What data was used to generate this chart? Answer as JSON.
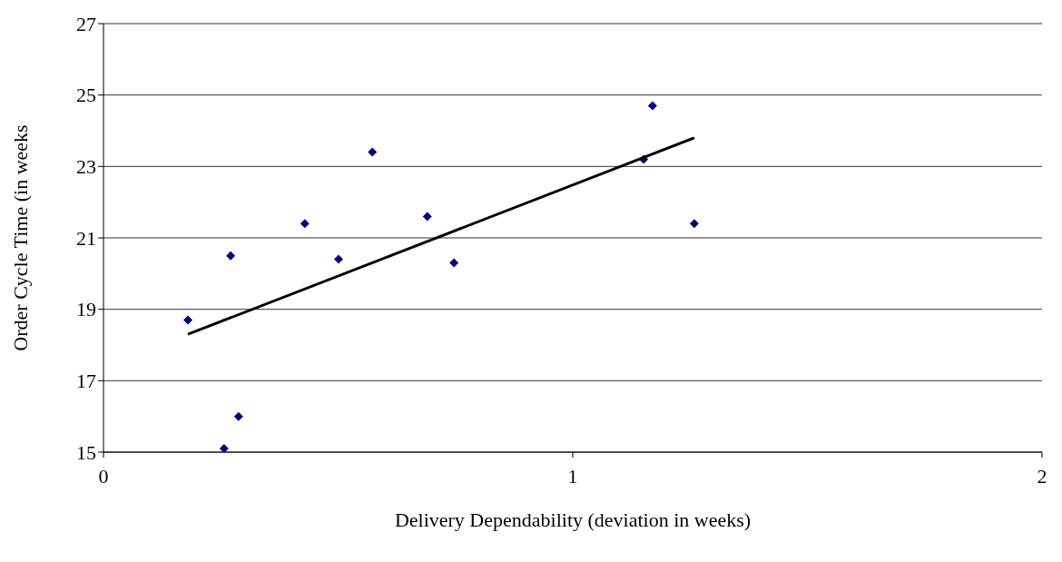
{
  "chart_data": {
    "type": "scatter",
    "xlabel": "Delivery Dependability (deviation in weeks)",
    "ylabel": "Order Cycle Time (in weeks",
    "xlim": [
      0,
      2
    ],
    "xticks": [
      0,
      1,
      2
    ],
    "ylim": [
      15,
      27
    ],
    "yticks": [
      15,
      17,
      19,
      21,
      23,
      25,
      27
    ],
    "grid": "y",
    "legend": false,
    "series": [
      {
        "type": "scatter",
        "color": "#000080",
        "marker": "diamond",
        "x": [
          0.18,
          0.257,
          0.288,
          0.271,
          0.429,
          0.501,
          0.573,
          0.69,
          0.747,
          1.151,
          1.17,
          1.259
        ],
        "values": [
          18.7,
          15.1,
          16.0,
          20.5,
          21.4,
          20.4,
          23.4,
          21.6,
          20.3,
          23.2,
          24.7,
          21.4
        ]
      },
      {
        "type": "line",
        "color": "#000000",
        "marker": "none",
        "line_style": "solid",
        "x": [
          0.18,
          1.259
        ],
        "values": [
          18.3,
          23.8
        ]
      }
    ]
  }
}
